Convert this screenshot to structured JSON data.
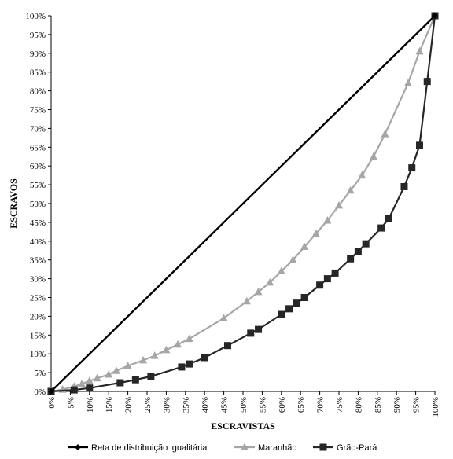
{
  "chart_data": {
    "type": "line",
    "title": "",
    "xlabel": "Escravistas",
    "ylabel": "Escravos",
    "xlim": [
      0,
      100
    ],
    "ylim": [
      0,
      100
    ],
    "x_ticks": [
      "0%",
      "5%",
      "10%",
      "15%",
      "20%",
      "25%",
      "30%",
      "35%",
      "40%",
      "45%",
      "50%",
      "55%",
      "60%",
      "65%",
      "70%",
      "75%",
      "80%",
      "85%",
      "90%",
      "95%",
      "100%"
    ],
    "y_ticks": [
      "0%",
      "5%",
      "10%",
      "15%",
      "20%",
      "25%",
      "30%",
      "35%",
      "40%",
      "45%",
      "50%",
      "55%",
      "60%",
      "65%",
      "70%",
      "75%",
      "80%",
      "85%",
      "90%",
      "95%",
      "100%"
    ],
    "grid": false,
    "legend_position": "bottom",
    "series": [
      {
        "name": "Reta de distribuição igualitária",
        "color": "#000000",
        "marker": "diamond",
        "points": [
          [
            0,
            0
          ],
          [
            100,
            100
          ]
        ]
      },
      {
        "name": "Maranhão",
        "color": "#a6a6a6",
        "marker": "triangle",
        "points": [
          [
            0,
            0
          ],
          [
            3,
            0.5
          ],
          [
            6,
            1.3
          ],
          [
            8,
            2
          ],
          [
            10,
            2.8
          ],
          [
            12,
            3.5
          ],
          [
            15,
            4.5
          ],
          [
            17,
            5.5
          ],
          [
            20,
            6.8
          ],
          [
            24,
            8.3
          ],
          [
            27,
            9.5
          ],
          [
            30,
            11
          ],
          [
            33,
            12.5
          ],
          [
            36,
            14
          ],
          [
            45,
            19.5
          ],
          [
            51,
            24
          ],
          [
            54,
            26.5
          ],
          [
            57,
            29
          ],
          [
            60,
            32
          ],
          [
            63,
            35
          ],
          [
            66,
            38.5
          ],
          [
            69,
            42
          ],
          [
            72,
            45.5
          ],
          [
            75,
            49.5
          ],
          [
            78,
            53.5
          ],
          [
            81,
            57.5
          ],
          [
            84,
            62.5
          ],
          [
            87,
            68.5
          ],
          [
            93,
            82
          ],
          [
            96,
            90.5
          ],
          [
            100,
            100
          ]
        ]
      },
      {
        "name": "Grão-Pará",
        "color": "#262626",
        "marker": "square",
        "points": [
          [
            0,
            0
          ],
          [
            6,
            0.4
          ],
          [
            10,
            0.9
          ],
          [
            18,
            2.3
          ],
          [
            22,
            3.1
          ],
          [
            26,
            4
          ],
          [
            34,
            6.5
          ],
          [
            36,
            7.3
          ],
          [
            40,
            9
          ],
          [
            46,
            12.2
          ],
          [
            52,
            15.5
          ],
          [
            54,
            16.5
          ],
          [
            60,
            20.5
          ],
          [
            62,
            22
          ],
          [
            64,
            23.5
          ],
          [
            66,
            25
          ],
          [
            70,
            28.3
          ],
          [
            72,
            30
          ],
          [
            74,
            31.5
          ],
          [
            78,
            35.3
          ],
          [
            80,
            37.3
          ],
          [
            82,
            39.3
          ],
          [
            86,
            43.5
          ],
          [
            88,
            46
          ],
          [
            92,
            54.5
          ],
          [
            94,
            59.5
          ],
          [
            96,
            65.5
          ],
          [
            98,
            82.5
          ],
          [
            100,
            100
          ]
        ]
      }
    ]
  }
}
